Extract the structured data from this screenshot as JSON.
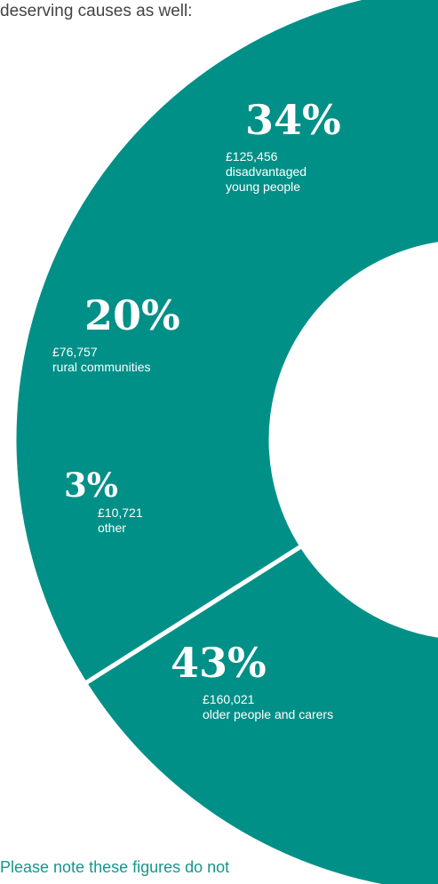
{
  "intro_text": "deserving causes as well:",
  "footnote_text": "Please note these figures do not",
  "colors": {
    "slice": "#009087",
    "divider": "#ffffff",
    "accent_text": "#16968c"
  },
  "chart_data": {
    "type": "pie",
    "variant": "donut",
    "slices": [
      {
        "key": "young",
        "percent": 34,
        "percent_label": "34%",
        "amount": 125456,
        "amount_label": "£125,456",
        "label": "disadvantaged young people",
        "label_lines": [
          "disadvantaged",
          "young people"
        ]
      },
      {
        "key": "rural",
        "percent": 20,
        "percent_label": "20%",
        "amount": 76757,
        "amount_label": "£76,757",
        "label": "rural communities",
        "label_lines": [
          "rural communities"
        ]
      },
      {
        "key": "other",
        "percent": 3,
        "percent_label": "3%",
        "amount": 10721,
        "amount_label": "£10,721",
        "label": "other",
        "label_lines": [
          "other"
        ]
      },
      {
        "key": "older",
        "percent": 43,
        "percent_label": "43%",
        "amount": 160021,
        "amount_label": "£160,021",
        "label": "older people and carers",
        "label_lines": [
          "older people and carers"
        ]
      }
    ]
  }
}
